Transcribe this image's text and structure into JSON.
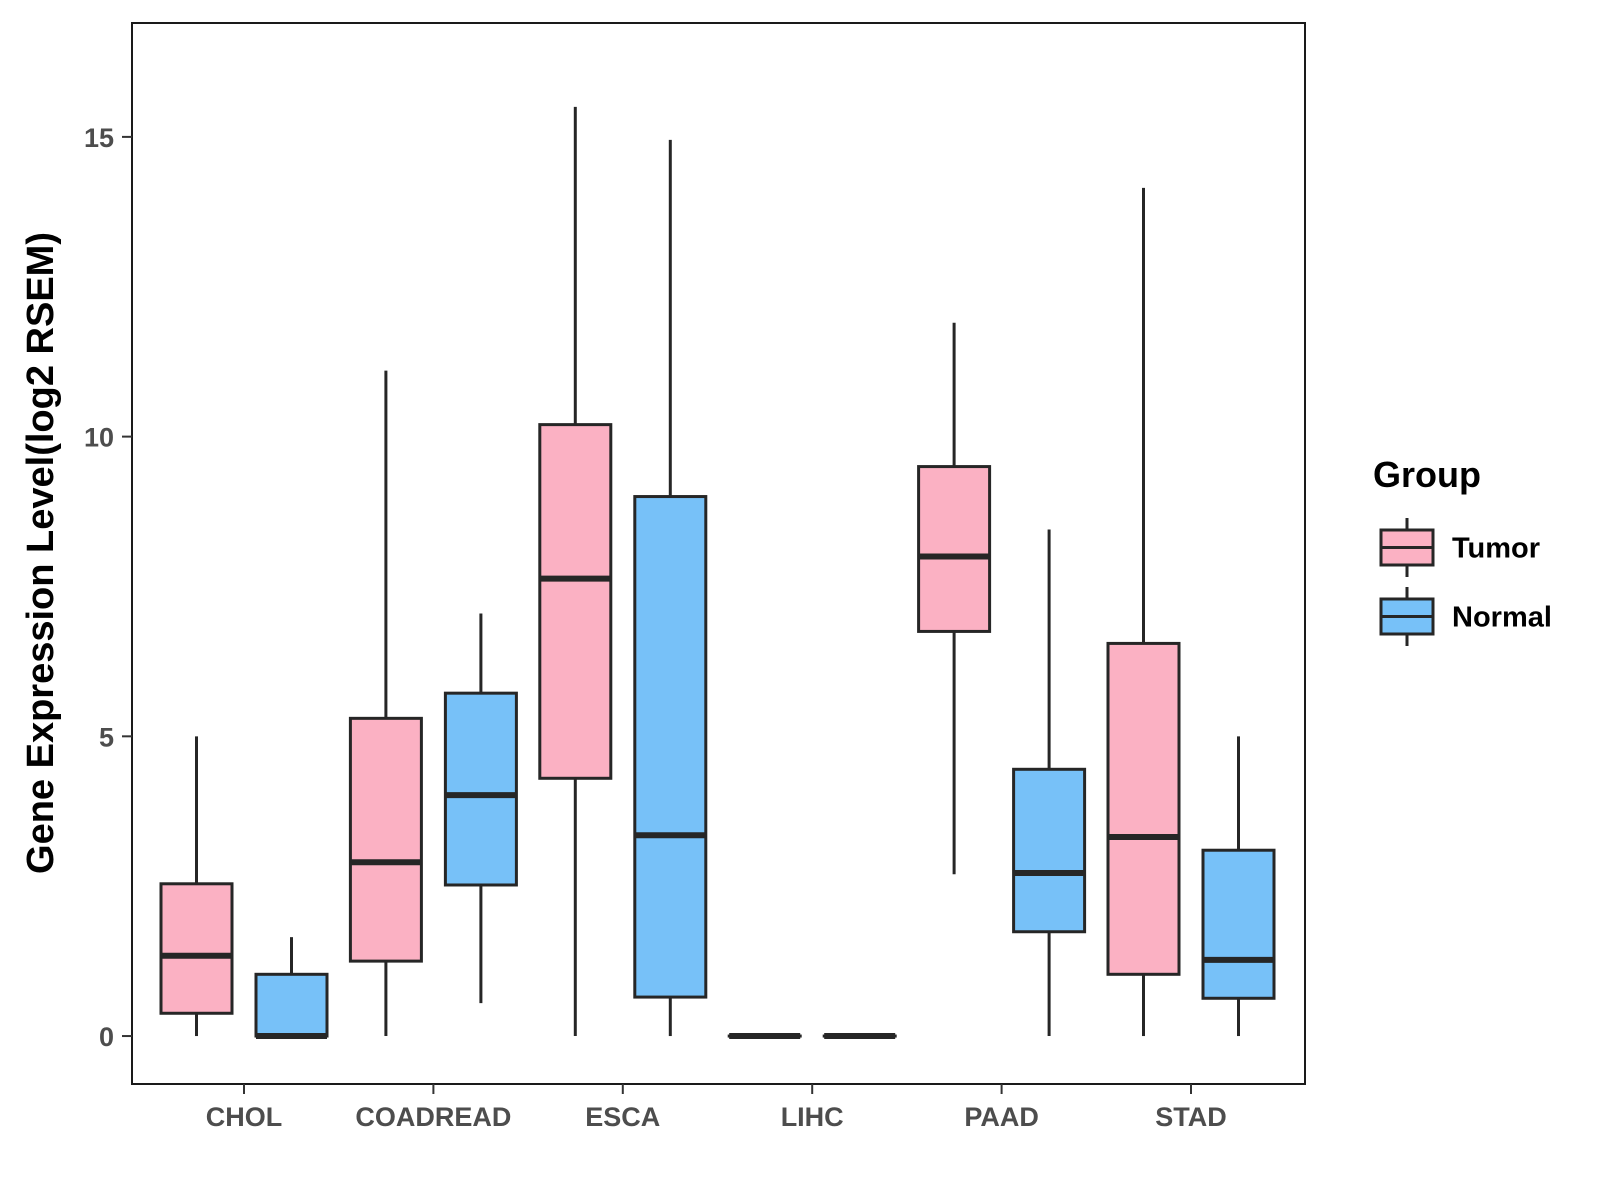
{
  "chart_data": {
    "type": "boxplot",
    "title": "",
    "xlabel": "",
    "ylabel": "Gene Expression Level(log2 RSEM)",
    "ylim": [
      -0.8,
      16.9
    ],
    "yticks": [
      0,
      5,
      10,
      15
    ],
    "grid": false,
    "legend": {
      "title": "Group",
      "placement": "right",
      "entries": [
        {
          "name": "Tumor",
          "color": "#FBB1C3"
        },
        {
          "name": "Normal",
          "color": "#77C1F8"
        }
      ]
    },
    "categories": [
      "CHOL",
      "COADREAD",
      "ESCA",
      "LIHC",
      "PAAD",
      "STAD"
    ],
    "series": [
      {
        "name": "Tumor",
        "color": "#FBB1C3",
        "boxes": [
          {
            "min": 0,
            "q1": 0.38,
            "median": 1.34,
            "q3": 2.54,
            "max": 5.0
          },
          {
            "min": 0,
            "q1": 1.25,
            "median": 2.9,
            "q3": 5.3,
            "max": 11.1
          },
          {
            "min": 0,
            "q1": 4.3,
            "median": 7.63,
            "q3": 10.2,
            "max": 15.5
          },
          {
            "min": 0,
            "q1": 0,
            "median": 0,
            "q3": 0,
            "max": 0
          },
          {
            "min": 2.7,
            "q1": 6.75,
            "median": 8.0,
            "q3": 9.5,
            "max": 11.9
          },
          {
            "min": 0,
            "q1": 1.03,
            "median": 3.32,
            "q3": 6.55,
            "max": 14.15
          }
        ]
      },
      {
        "name": "Normal",
        "color": "#77C1F8",
        "boxes": [
          {
            "min": 0,
            "q1": 0,
            "median": 0,
            "q3": 1.03,
            "max": 1.65
          },
          {
            "min": 0.55,
            "q1": 2.52,
            "median": 4.02,
            "q3": 5.72,
            "max": 7.05
          },
          {
            "min": 0,
            "q1": 0.65,
            "median": 3.35,
            "q3": 9.0,
            "max": 14.95
          },
          {
            "min": 0,
            "q1": 0,
            "median": 0,
            "q3": 0,
            "max": 0
          },
          {
            "min": 0,
            "q1": 1.74,
            "median": 2.72,
            "q3": 4.45,
            "max": 8.45
          },
          {
            "min": 0,
            "q1": 0.63,
            "median": 1.27,
            "q3": 3.1,
            "max": 5.0
          }
        ]
      }
    ]
  }
}
